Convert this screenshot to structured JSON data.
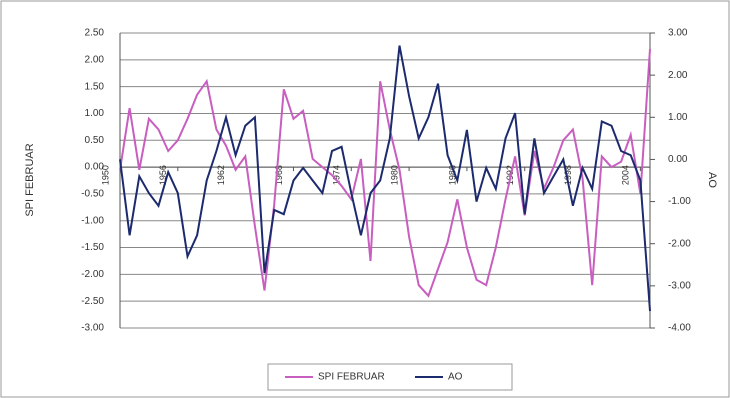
{
  "chart_data": {
    "type": "line",
    "x": [
      1950,
      1951,
      1952,
      1953,
      1954,
      1955,
      1956,
      1957,
      1958,
      1959,
      1960,
      1961,
      1962,
      1963,
      1964,
      1965,
      1966,
      1967,
      1968,
      1969,
      1970,
      1971,
      1972,
      1973,
      1974,
      1975,
      1976,
      1977,
      1978,
      1979,
      1980,
      1981,
      1982,
      1983,
      1984,
      1985,
      1986,
      1987,
      1988,
      1989,
      1990,
      1991,
      1992,
      1993,
      1994,
      1995,
      1996,
      1997,
      1998,
      1999,
      2000,
      2001,
      2002,
      2003,
      2004,
      2005
    ],
    "xlim": [
      1950,
      2005
    ],
    "xticks": [
      1950,
      1956,
      1962,
      1968,
      1974,
      1980,
      1986,
      1992,
      1998,
      2004
    ],
    "ylabel": "SPI FEBRUAR",
    "y2label": "AO",
    "ylim": [
      -3,
      2.5
    ],
    "yticks": [
      {
        "value": -3,
        "label": "-3.00"
      },
      {
        "value": -2.5,
        "label": "-2.50"
      },
      {
        "value": -2,
        "label": "-2.00"
      },
      {
        "value": -1.5,
        "label": "-1.50"
      },
      {
        "value": -1,
        "label": "-1.00"
      },
      {
        "value": -0.5,
        "label": "-0.50"
      },
      {
        "value": 0,
        "label": "0.00"
      },
      {
        "value": 0.5,
        "label": "0.50"
      },
      {
        "value": 1,
        "label": "1.00"
      },
      {
        "value": 1.5,
        "label": "1.50"
      },
      {
        "value": 2,
        "label": "2.00"
      },
      {
        "value": 2.5,
        "label": "2.50"
      }
    ],
    "y2lim": [
      -4,
      3
    ],
    "y2ticks": [
      {
        "value": -4,
        "label": "-4.00"
      },
      {
        "value": -3,
        "label": "-3.00"
      },
      {
        "value": -2,
        "label": "-2.00"
      },
      {
        "value": -1,
        "label": "-1.00"
      },
      {
        "value": 0,
        "label": "0.00"
      },
      {
        "value": 1,
        "label": "1.00"
      },
      {
        "value": 2,
        "label": "2.00"
      },
      {
        "value": 3,
        "label": "3.00"
      }
    ],
    "grid": true,
    "series": [
      {
        "name": "SPI FEBRUAR",
        "color": "#c85ec0",
        "values": [
          -0.05,
          1.1,
          -0.05,
          0.9,
          0.7,
          0.3,
          0.5,
          0.9,
          1.35,
          1.6,
          0.7,
          0.4,
          -0.05,
          0.2,
          -1.1,
          -2.3,
          -0.7,
          1.45,
          0.9,
          1.05,
          0.15,
          0,
          -0.15,
          -0.35,
          -0.6,
          0.15,
          -1.75,
          1.6,
          0.7,
          -0.05,
          -1.3,
          -2.2,
          -2.4,
          -1.9,
          -1.4,
          -0.6,
          -1.5,
          -2.1,
          -2.2,
          -1.5,
          -0.6,
          0.2,
          -0.9,
          0.3,
          -0.4,
          0,
          0.5,
          0.7,
          -0.2,
          -2.2,
          0.2,
          0,
          0.1,
          0.6,
          -0.5,
          2.2
        ]
      },
      {
        "name": "AO",
        "color": "#1c2a6e",
        "axis": "y2",
        "values": [
          0,
          -1.8,
          -0.4,
          -0.8,
          -1.1,
          -0.3,
          -0.8,
          -2.3,
          -1.8,
          -0.5,
          0.2,
          1,
          0.1,
          0.8,
          1,
          -2.7,
          -1.2,
          -1.3,
          -0.5,
          -0.2,
          -0.5,
          -0.8,
          0.2,
          0.3,
          -0.8,
          -1.8,
          -0.8,
          -0.5,
          0.5,
          2.7,
          1.5,
          0.5,
          1,
          1.8,
          0.1,
          -0.5,
          0.7,
          -1,
          -0.2,
          -0.7,
          0.5,
          1.1,
          -1.3,
          0.5,
          -0.8,
          -0.4,
          0,
          -1.1,
          -0.2,
          -0.7,
          0.9,
          0.8,
          0.2,
          0.1,
          -0.5,
          -3.6
        ]
      }
    ]
  }
}
